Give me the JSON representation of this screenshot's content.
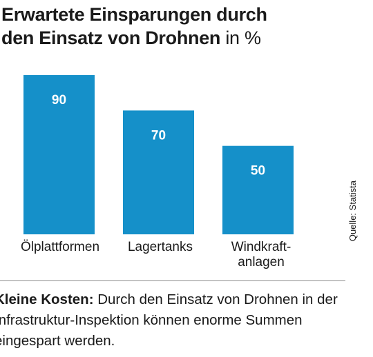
{
  "title": {
    "main_line1": "Erwartete Einsparungen durch",
    "main_line2": "den Einsatz von Drohnen",
    "unit": "in %"
  },
  "source": "Quelle: Statista",
  "caption": {
    "lead": "Kleine Kosten:",
    "text": " Durch den Einsatz von Drohnen in der Infrastruktur-Inspektion können enorme Summen eingespart werden."
  },
  "colors": {
    "bar": "#1590c9",
    "value_label": "#ffffff"
  },
  "chart_data": {
    "type": "bar",
    "categories": [
      "Ölplattformen",
      "Lagertanks",
      "Windkraft-\nanlagen"
    ],
    "values": [
      90,
      70,
      50
    ],
    "title": "Erwartete Einsparungen durch den Einsatz von Drohnen",
    "ylabel": "in %",
    "xlabel": "",
    "ylim": [
      0,
      100
    ],
    "grid": false,
    "legend": "none"
  }
}
